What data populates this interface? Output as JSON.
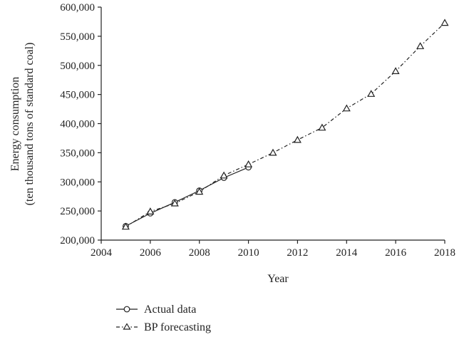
{
  "chart_data": {
    "type": "line",
    "xlabel": "Year",
    "ylabel": [
      "Energy consumption",
      "(ten thousand tons of standard coal)"
    ],
    "xlim": [
      2004,
      2018
    ],
    "ylim": [
      200000,
      600000
    ],
    "x_ticks": [
      "2004",
      "2006",
      "2008",
      "2010",
      "2012",
      "2014",
      "2016",
      "2018"
    ],
    "y_ticks": [
      "200,000",
      "250,000",
      "300,000",
      "350,000",
      "400,000",
      "450,000",
      "500,000",
      "550,000",
      "600,000"
    ],
    "grid": false,
    "legend_position": "bottom-left",
    "series": [
      {
        "name": "Actual data",
        "marker": "circle",
        "line_style": "solid",
        "color": "#222222",
        "x": [
          2005,
          2006,
          2007,
          2008,
          2009,
          2010
        ],
        "values": [
          224000,
          246000,
          265000,
          285000,
          307000,
          325000
        ]
      },
      {
        "name": "BP forecasting",
        "marker": "triangle",
        "line_style": "dash-dot",
        "color": "#222222",
        "x": [
          2005,
          2006,
          2007,
          2008,
          2009,
          2010,
          2011,
          2012,
          2013,
          2014,
          2015,
          2016,
          2017,
          2018
        ],
        "values": [
          223000,
          249000,
          263000,
          283000,
          311000,
          330000,
          350000,
          372000,
          393000,
          426000,
          451000,
          490000,
          533000,
          573000
        ]
      }
    ]
  }
}
